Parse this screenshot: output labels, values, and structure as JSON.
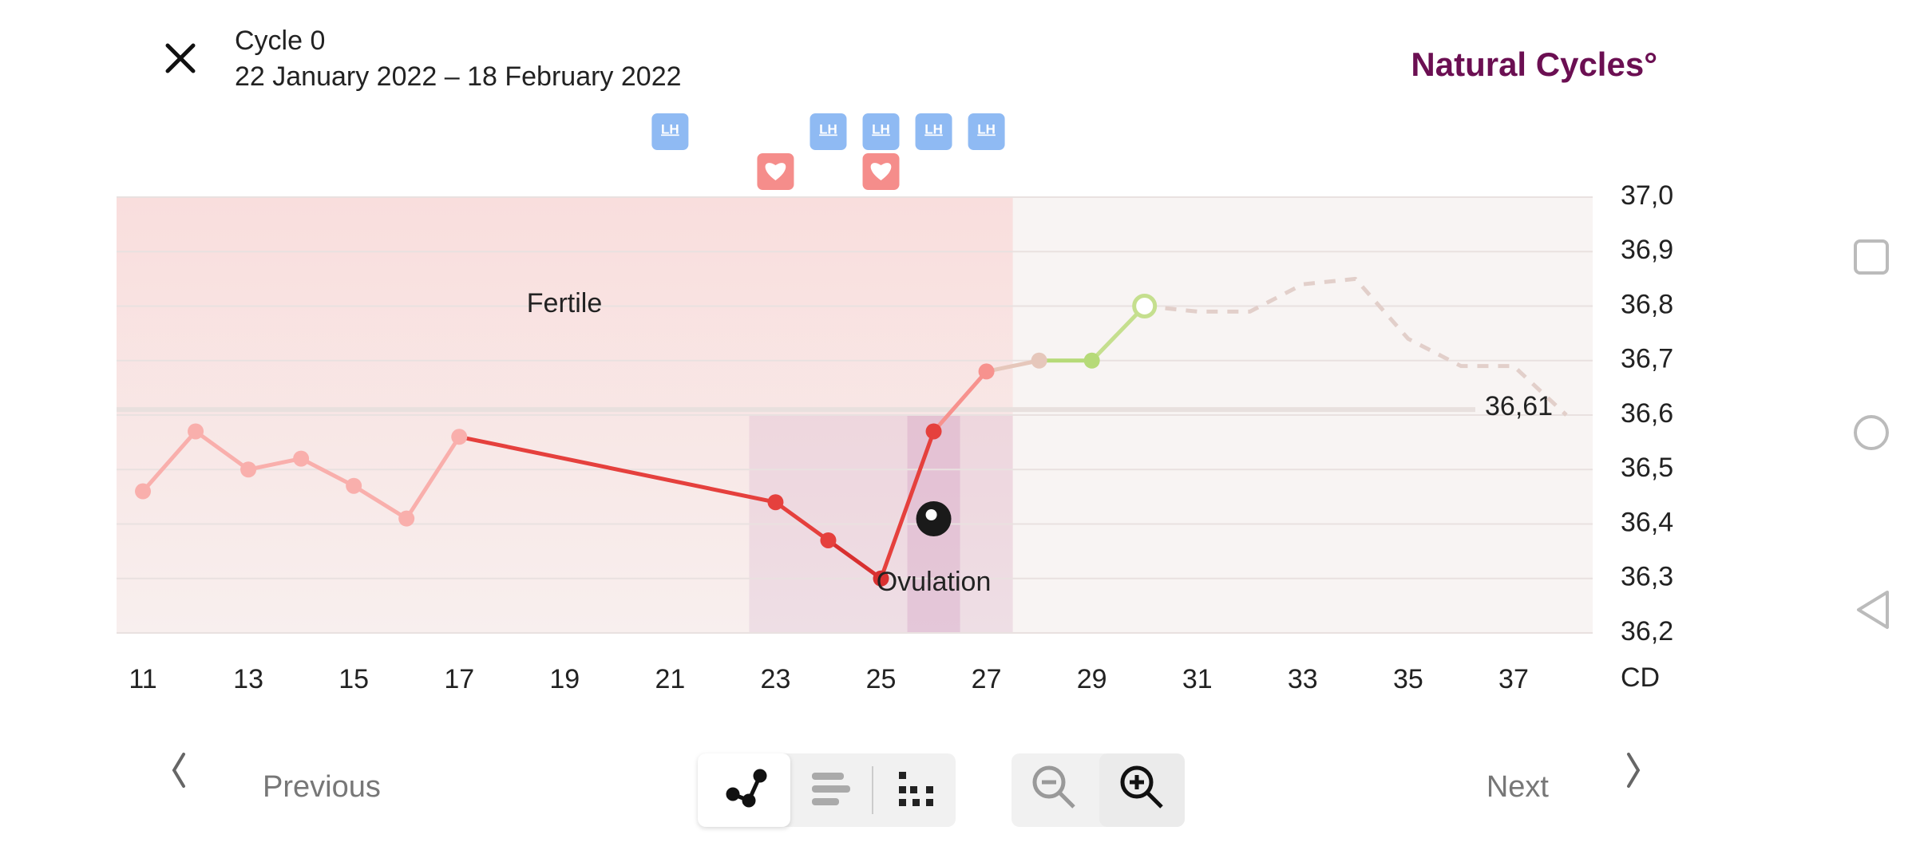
{
  "header": {
    "cycle": "Cycle 0",
    "dates": "22 January 2022 – 18 February 2022",
    "logo": "Natural Cycles°"
  },
  "chart_data": {
    "type": "line",
    "x": [
      11,
      12,
      13,
      14,
      15,
      16,
      17,
      23,
      24,
      25,
      26,
      27,
      28,
      29,
      30
    ],
    "values": [
      36.46,
      36.57,
      36.5,
      36.52,
      36.47,
      36.41,
      36.56,
      36.44,
      36.37,
      36.3,
      36.57,
      36.68,
      36.7,
      36.7,
      36.8
    ],
    "point_colors": [
      "#f9afac",
      "#f9afac",
      "#f9afac",
      "#f9afac",
      "#f9afac",
      "#f9afac",
      "#f9afac",
      "#e5403d",
      "#e5403d",
      "#d83030",
      "#e5403d",
      "#f7928e",
      "#e6c7bb",
      "#b6da78",
      "#c5df8e"
    ],
    "prediction": {
      "x": [
        30,
        31,
        32,
        33,
        34,
        35,
        36,
        37,
        38
      ],
      "values": [
        36.8,
        36.79,
        36.79,
        36.84,
        36.85,
        36.74,
        36.69,
        36.69,
        36.6
      ],
      "color": "#e2cfca"
    },
    "cover_line": {
      "value": 36.61,
      "label": "36,61"
    },
    "fertile_window": [
      10.5,
      27.5
    ],
    "ovulation_window": [
      22.5,
      27.5
    ],
    "ovulation_peak": [
      25.5,
      26.5
    ],
    "ovulation_day": 26,
    "lh_days": [
      21,
      24,
      25,
      26,
      27
    ],
    "lh_label": "LH",
    "intercourse_days": [
      23,
      25
    ],
    "annotations": {
      "fertile": "Fertile",
      "ovulation": "Ovulation"
    },
    "xlim": [
      10.5,
      38.5
    ],
    "ylim": [
      36.2,
      37.0
    ],
    "xticks": [
      11,
      13,
      15,
      17,
      19,
      21,
      23,
      25,
      27,
      29,
      31,
      33,
      35,
      37
    ],
    "x_label": "CD",
    "yticks": [
      {
        "value": 36.2,
        "label": "36,2"
      },
      {
        "value": 36.3,
        "label": "36,3"
      },
      {
        "value": 36.4,
        "label": "36,4"
      },
      {
        "value": 36.5,
        "label": "36,5"
      },
      {
        "value": 36.6,
        "label": "36,6"
      },
      {
        "value": 36.7,
        "label": "36,7"
      },
      {
        "value": 36.8,
        "label": "36,8"
      },
      {
        "value": 36.9,
        "label": "36,9"
      },
      {
        "value": 37.0,
        "label": "37,0"
      }
    ],
    "grid": true
  },
  "footer": {
    "previous": "Previous",
    "next": "Next"
  }
}
